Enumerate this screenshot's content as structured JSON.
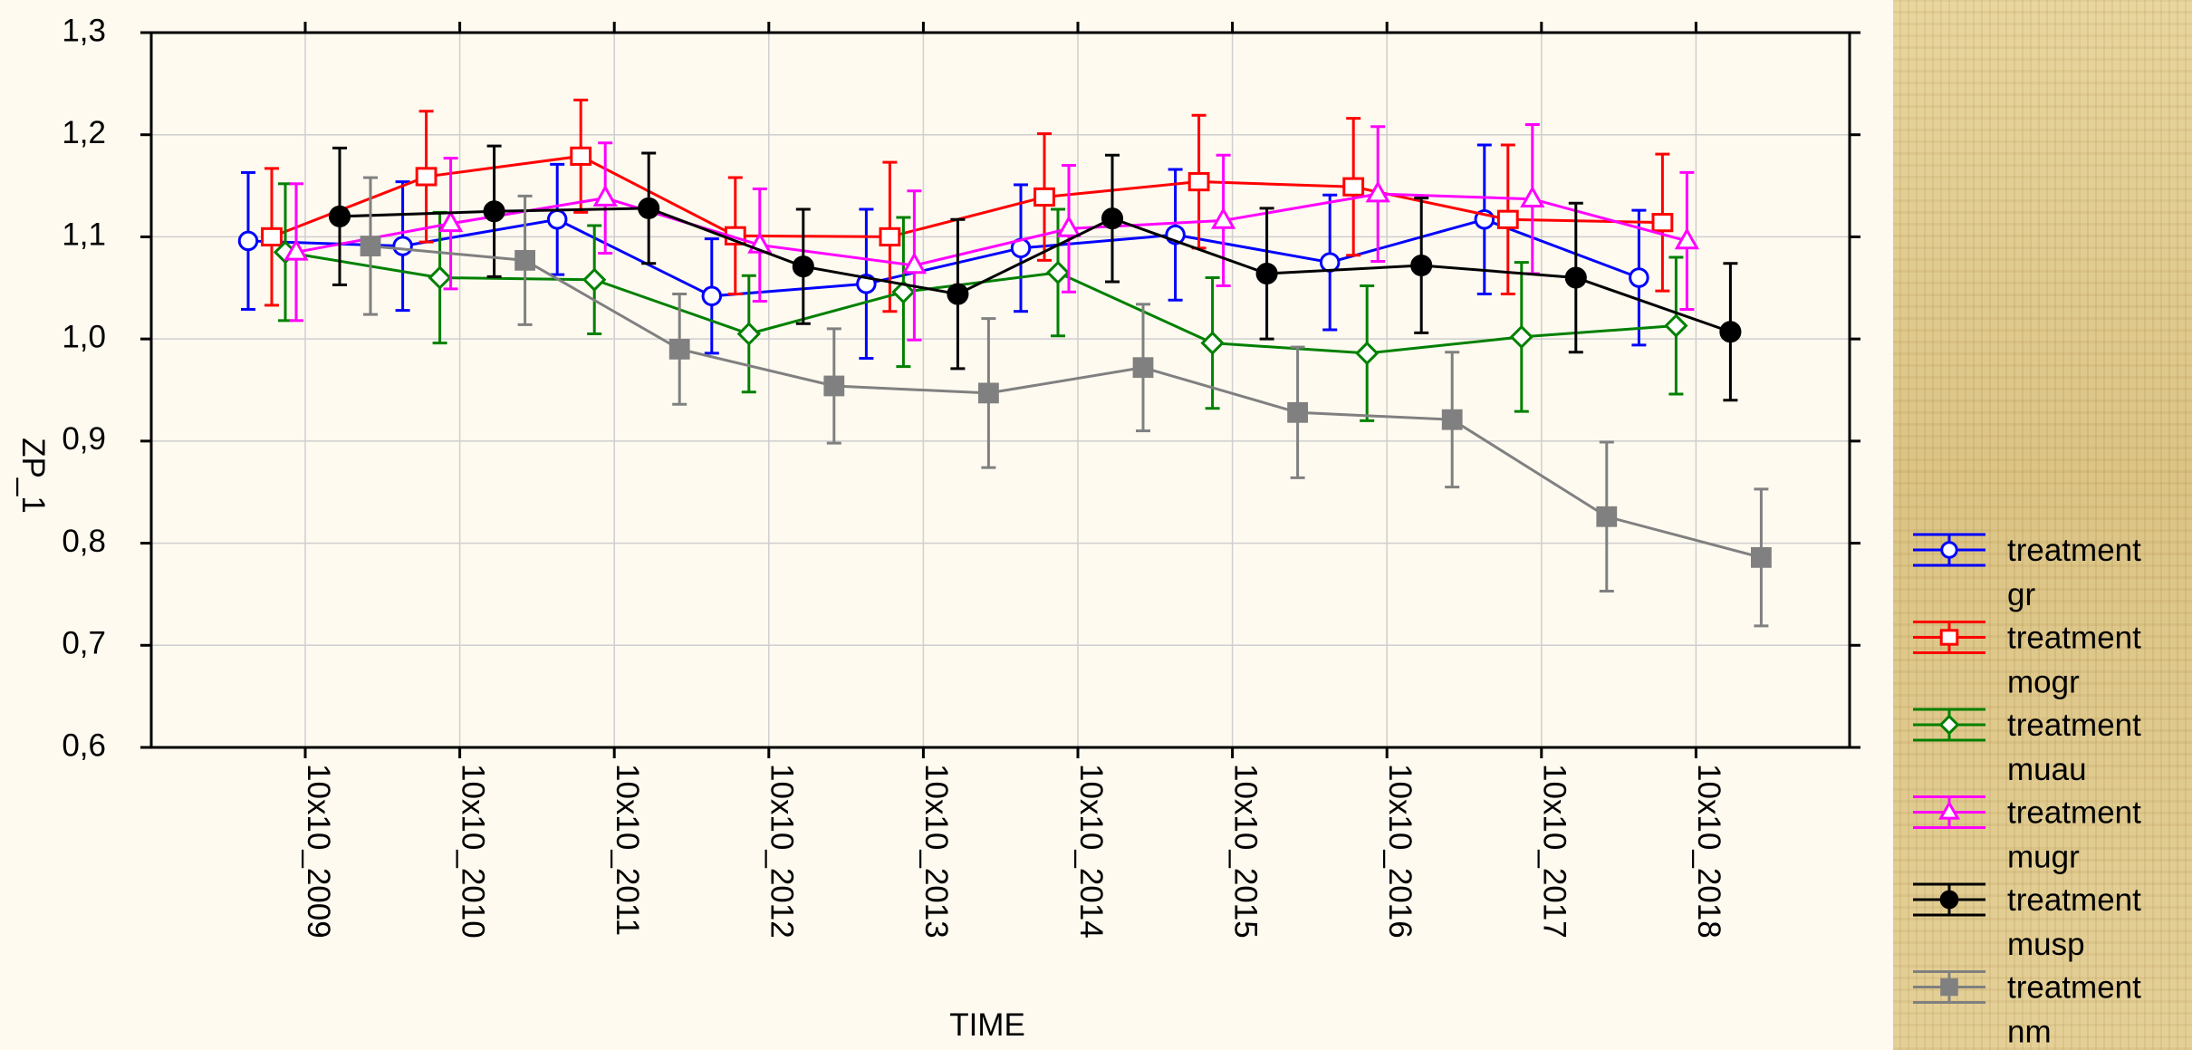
{
  "chart_data": {
    "type": "line",
    "title": "",
    "xlabel": "TIME",
    "ylabel": "ZP_1",
    "ylim": [
      0.6,
      1.3
    ],
    "yticks": [
      "0,6",
      "0,7",
      "0,8",
      "0,9",
      "1,0",
      "1,1",
      "1,2",
      "1,3"
    ],
    "grid": true,
    "error_bars": true,
    "legend_position": "right",
    "categories": [
      "10x10_2009",
      "10x10_2010",
      "10x10_2011",
      "10x10_2012",
      "10x10_2013",
      "10x10_2014",
      "10x10_2015",
      "10x10_2016",
      "10x10_2017",
      "10x10_2018"
    ],
    "series": [
      {
        "name": "treatment gr",
        "color": "#0000ff",
        "marker": "circle-open",
        "values": [
          1.096,
          1.091,
          1.117,
          1.042,
          1.054,
          1.089,
          1.102,
          1.075,
          1.117,
          1.06
        ],
        "errors": [
          0.067,
          0.063,
          0.054,
          0.056,
          0.073,
          0.062,
          0.064,
          0.066,
          0.073,
          0.066
        ]
      },
      {
        "name": "treatment mogr",
        "color": "#ff0000",
        "marker": "square-open",
        "values": [
          1.1,
          1.159,
          1.179,
          1.101,
          1.1,
          1.139,
          1.154,
          1.149,
          1.117,
          1.114
        ],
        "errors": [
          0.067,
          0.064,
          0.055,
          0.057,
          0.073,
          0.062,
          0.065,
          0.067,
          0.073,
          0.067
        ]
      },
      {
        "name": "treatment muau",
        "color": "#008000",
        "marker": "diamond-open",
        "values": [
          1.085,
          1.06,
          1.058,
          1.005,
          1.046,
          1.065,
          0.996,
          0.986,
          1.002,
          1.013
        ],
        "errors": [
          0.067,
          0.064,
          0.053,
          0.057,
          0.073,
          0.062,
          0.064,
          0.066,
          0.073,
          0.067
        ]
      },
      {
        "name": "treatment mugr",
        "color": "#ff00ff",
        "marker": "triangle-open",
        "values": [
          1.085,
          1.113,
          1.138,
          1.092,
          1.072,
          1.108,
          1.116,
          1.142,
          1.137,
          1.096
        ],
        "errors": [
          0.067,
          0.064,
          0.054,
          0.055,
          0.073,
          0.062,
          0.064,
          0.066,
          0.073,
          0.067
        ]
      },
      {
        "name": "treatment musp",
        "color": "#000000",
        "marker": "circle-filled",
        "values": [
          1.12,
          1.125,
          1.128,
          1.071,
          1.044,
          1.118,
          1.064,
          1.072,
          1.06,
          1.007
        ],
        "errors": [
          0.067,
          0.064,
          0.054,
          0.056,
          0.073,
          0.062,
          0.064,
          0.066,
          0.073,
          0.067
        ]
      },
      {
        "name": "treatment nm",
        "color": "#808080",
        "marker": "square-filled",
        "values": [
          1.091,
          1.077,
          0.99,
          0.954,
          0.947,
          0.972,
          0.928,
          0.921,
          0.826,
          0.786
        ],
        "errors": [
          0.067,
          0.063,
          0.054,
          0.056,
          0.073,
          0.062,
          0.064,
          0.066,
          0.073,
          0.067
        ]
      }
    ],
    "legend": [
      {
        "lines": [
          "treatment",
          "gr"
        ]
      },
      {
        "lines": [
          "treatment",
          "mogr"
        ]
      },
      {
        "lines": [
          "treatment",
          "muau"
        ]
      },
      {
        "lines": [
          "treatment",
          "mugr"
        ]
      },
      {
        "lines": [
          "treatment",
          "musp"
        ]
      },
      {
        "lines": [
          "treatment",
          "nm"
        ]
      }
    ]
  }
}
